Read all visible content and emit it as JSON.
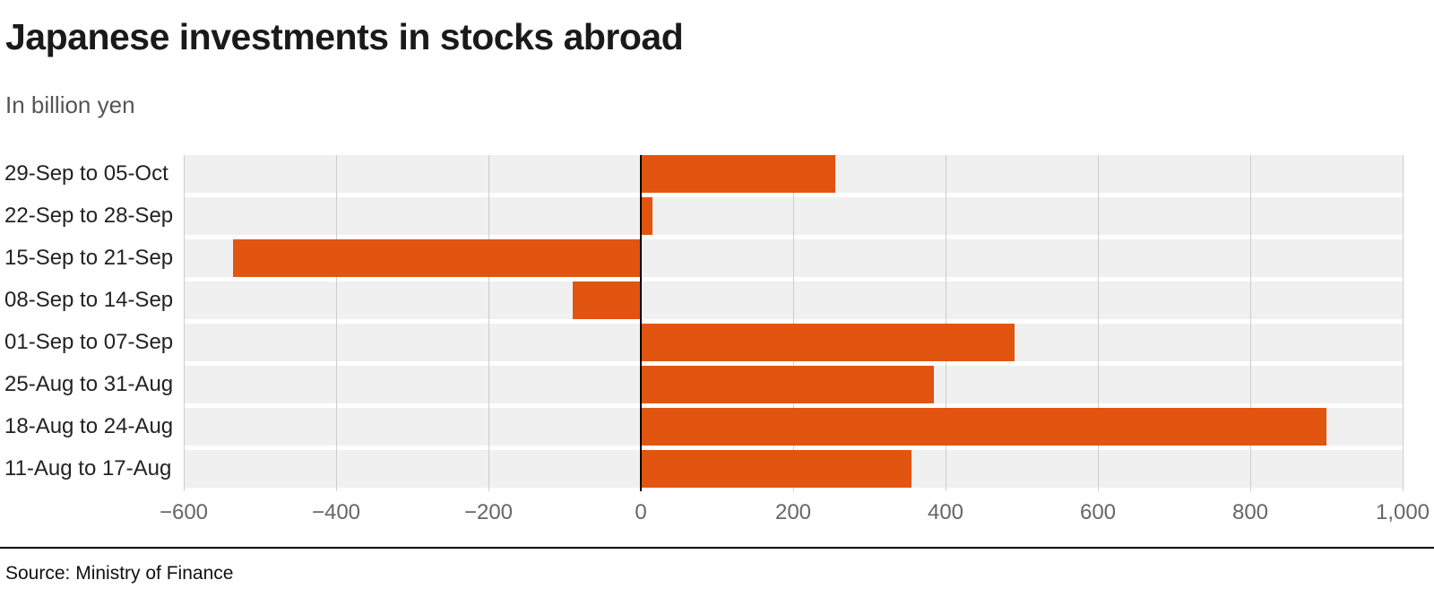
{
  "header": {
    "title": "Japanese investments in stocks abroad",
    "subtitle": "In billion yen"
  },
  "footer": {
    "source": "Source: Ministry of Finance"
  },
  "colors": {
    "bar": "#e25510",
    "band": "#f0f0f0",
    "grid": "#cccccc",
    "zero_line": "#000000",
    "tick_text": "#666666",
    "label_text": "#222222"
  },
  "chart_data": {
    "type": "bar",
    "orientation": "horizontal",
    "title": "Japanese investments in stocks abroad",
    "subtitle": "In billion yen",
    "xlabel": "",
    "ylabel": "",
    "categories": [
      "29-Sep to 05-Oct",
      "22-Sep to 28-Sep",
      "15-Sep to 21-Sep",
      "08-Sep to 14-Sep",
      "01-Sep to 07-Sep",
      "25-Aug to 31-Aug",
      "18-Aug to 24-Aug",
      "11-Aug to 17-Aug"
    ],
    "values": [
      255,
      15,
      -535,
      -90,
      490,
      385,
      900,
      355
    ],
    "xlim": [
      -600,
      1000
    ],
    "xticks": [
      -600,
      -400,
      -200,
      0,
      200,
      400,
      600,
      800,
      1000
    ],
    "xtick_labels": [
      "−600",
      "−400",
      "−200",
      "0",
      "200",
      "400",
      "600",
      "800",
      "1,000"
    ],
    "grid": true,
    "legend": false
  }
}
